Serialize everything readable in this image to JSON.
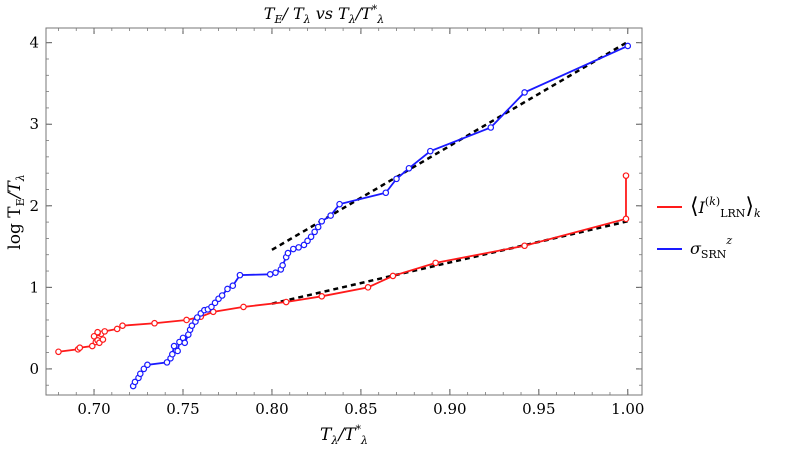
{
  "chart_data": {
    "type": "line",
    "title_parts": [
      "T",
      "E",
      "/ T",
      "λ",
      " vs T",
      "λ",
      "/T",
      "*",
      "λ"
    ],
    "xlabel_parts": [
      "T",
      "λ",
      "/T",
      "*",
      "λ"
    ],
    "ylabel_parts": [
      "log T",
      "E",
      "/T",
      "λ"
    ],
    "xlim": [
      0.673,
      1.008
    ],
    "ylim": [
      -0.32,
      4.18
    ],
    "xticks": [
      "0.70",
      "0.75",
      "0.80",
      "0.85",
      "0.90",
      "0.95",
      "1.00"
    ],
    "xtick_values": [
      0.7,
      0.75,
      0.8,
      0.85,
      0.9,
      0.95,
      1.0
    ],
    "yticks": [
      "0",
      "1",
      "2",
      "3",
      "4"
    ],
    "ytick_values": [
      0,
      1,
      2,
      3,
      4
    ],
    "series": [
      {
        "name": "⟨I(k)LRN⟩k",
        "color": "#ff1a1a",
        "points": [
          [
            0.68,
            0.21
          ],
          [
            0.691,
            0.24
          ],
          [
            0.692,
            0.26
          ],
          [
            0.699,
            0.28
          ],
          [
            0.701,
            0.33
          ],
          [
            0.702,
            0.35
          ],
          [
            0.703,
            0.32
          ],
          [
            0.705,
            0.36
          ],
          [
            0.704,
            0.43
          ],
          [
            0.702,
            0.44
          ],
          [
            0.7,
            0.4
          ],
          [
            0.702,
            0.45
          ],
          [
            0.706,
            0.46
          ],
          [
            0.713,
            0.49
          ],
          [
            0.716,
            0.53
          ],
          [
            0.734,
            0.56
          ],
          [
            0.752,
            0.6
          ],
          [
            0.76,
            0.64
          ],
          [
            0.767,
            0.7
          ],
          [
            0.784,
            0.76
          ],
          [
            0.808,
            0.82
          ],
          [
            0.828,
            0.89
          ],
          [
            0.854,
            1.0
          ],
          [
            0.868,
            1.14
          ],
          [
            0.892,
            1.3
          ],
          [
            0.942,
            1.51
          ],
          [
            0.999,
            1.84
          ],
          [
            0.999,
            2.37
          ]
        ]
      },
      {
        "name": "σSRNz",
        "color": "#1a1aff",
        "points": [
          [
            0.722,
            -0.21
          ],
          [
            0.723,
            -0.16
          ],
          [
            0.725,
            -0.11
          ],
          [
            0.726,
            -0.06
          ],
          [
            0.728,
            0.0
          ],
          [
            0.73,
            0.05
          ],
          [
            0.741,
            0.08
          ],
          [
            0.743,
            0.13
          ],
          [
            0.744,
            0.18
          ],
          [
            0.745,
            0.28
          ],
          [
            0.747,
            0.22
          ],
          [
            0.748,
            0.33
          ],
          [
            0.75,
            0.38
          ],
          [
            0.751,
            0.32
          ],
          [
            0.753,
            0.42
          ],
          [
            0.754,
            0.48
          ],
          [
            0.755,
            0.53
          ],
          [
            0.757,
            0.58
          ],
          [
            0.758,
            0.63
          ],
          [
            0.76,
            0.68
          ],
          [
            0.762,
            0.72
          ],
          [
            0.764,
            0.73
          ],
          [
            0.766,
            0.76
          ],
          [
            0.768,
            0.81
          ],
          [
            0.77,
            0.86
          ],
          [
            0.772,
            0.9
          ],
          [
            0.775,
            0.98
          ],
          [
            0.778,
            1.02
          ],
          [
            0.782,
            1.15
          ],
          [
            0.799,
            1.16
          ],
          [
            0.802,
            1.18
          ],
          [
            0.805,
            1.22
          ],
          [
            0.806,
            1.27
          ],
          [
            0.808,
            1.37
          ],
          [
            0.809,
            1.42
          ],
          [
            0.812,
            1.47
          ],
          [
            0.815,
            1.49
          ],
          [
            0.818,
            1.52
          ],
          [
            0.82,
            1.57
          ],
          [
            0.822,
            1.62
          ],
          [
            0.824,
            1.68
          ],
          [
            0.826,
            1.74
          ],
          [
            0.828,
            1.81
          ],
          [
            0.833,
            1.88
          ],
          [
            0.838,
            2.02
          ],
          [
            0.864,
            2.16
          ],
          [
            0.87,
            2.33
          ],
          [
            0.877,
            2.46
          ],
          [
            0.889,
            2.67
          ],
          [
            0.923,
            2.96
          ],
          [
            0.942,
            3.39
          ],
          [
            1.0,
            3.96
          ]
        ]
      }
    ],
    "fit_lines": [
      {
        "points": [
          [
            0.8,
            1.46
          ],
          [
            1.0,
            4.01
          ]
        ]
      },
      {
        "points": [
          [
            0.8,
            0.8
          ],
          [
            1.0,
            1.81
          ]
        ]
      }
    ],
    "legend_position": "right",
    "grid": false
  }
}
